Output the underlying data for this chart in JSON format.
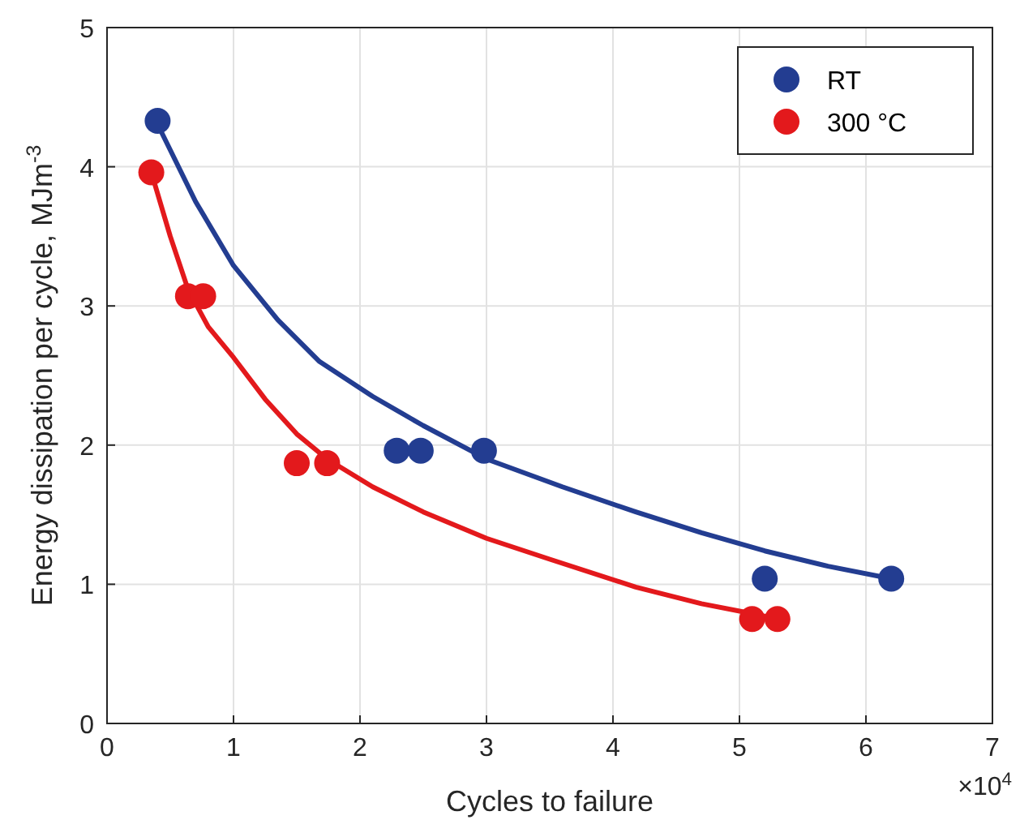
{
  "chart_data": {
    "type": "scatter",
    "xlabel": "Cycles to failure",
    "ylabel": "Energy dissipation per cycle, MJm$^{-3}$",
    "xlim": [
      0,
      7
    ],
    "ylim": [
      0,
      5
    ],
    "xticks": [
      0,
      1,
      2,
      3,
      4,
      5,
      6,
      7
    ],
    "yticks": [
      0,
      1,
      2,
      3,
      4,
      5
    ],
    "grid": true,
    "legend": "top right",
    "marker": "circle",
    "annotations": [
      "×10$^{4}$"
    ],
    "series": [
      {
        "name": "RT",
        "color": "#233d91",
        "x": [
          0.4,
          2.29,
          2.48,
          2.98,
          5.2,
          6.2
        ],
        "values": [
          4.33,
          1.96,
          1.96,
          1.96,
          1.04,
          1.04
        ]
      },
      {
        "name": "300 °C",
        "color": "#e3191c",
        "x": [
          0.35,
          0.64,
          0.76,
          1.5,
          1.74,
          5.1,
          5.3
        ],
        "values": [
          3.96,
          3.07,
          3.07,
          1.87,
          1.87,
          0.75,
          0.75
        ]
      },
      {
        "type": "line",
        "marker": "none",
        "color": "#233d91",
        "x": [
          0.43,
          0.7,
          1.0,
          1.35,
          1.68,
          2.1,
          2.5,
          3.0,
          3.6,
          4.18,
          4.7,
          5.2,
          5.7,
          6.2
        ],
        "values": [
          4.25,
          3.75,
          3.29,
          2.9,
          2.6,
          2.35,
          2.14,
          1.9,
          1.7,
          1.52,
          1.37,
          1.24,
          1.13,
          1.04
        ]
      },
      {
        "type": "line",
        "marker": "none",
        "color": "#e3191c",
        "x": [
          0.35,
          0.5,
          0.64,
          0.8,
          1.0,
          1.25,
          1.5,
          1.74,
          2.1,
          2.5,
          3.0,
          3.5,
          4.18,
          4.7,
          5.1,
          5.3
        ],
        "values": [
          3.96,
          3.5,
          3.12,
          2.85,
          2.63,
          2.33,
          2.08,
          1.9,
          1.7,
          1.52,
          1.33,
          1.18,
          0.98,
          0.86,
          0.79,
          0.75
        ]
      }
    ]
  }
}
